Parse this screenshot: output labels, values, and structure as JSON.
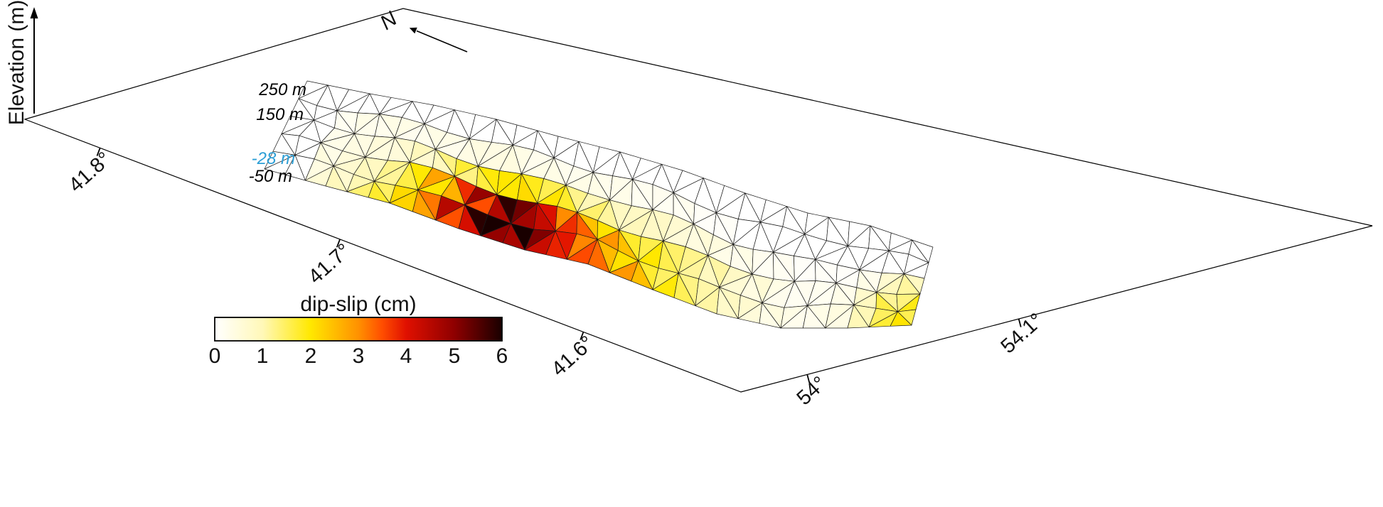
{
  "chart_data": {
    "type": "heatmap",
    "subtype": "3d-triangulated-fault-surface-mesh",
    "title": "",
    "axes": {
      "elevation_label": "Elevation (m)",
      "north_label": "N",
      "latitude_tick_labels": [
        "41.8°",
        "41.7°",
        "41.6°"
      ],
      "latitude_ticks_deg": [
        41.8,
        41.7,
        41.6
      ],
      "longitude_tick_labels": [
        "54°",
        "54.1°"
      ],
      "longitude_ticks_deg": [
        54,
        54.1
      ],
      "elevation_contour_labels": [
        "250 m",
        "150 m",
        "-28 m",
        "-50 m"
      ],
      "elevation_contours_m": [
        250,
        150,
        -28,
        -50
      ],
      "elevation_contour_label_colors": [
        "#000000",
        "#000000",
        "#2e9fd6",
        "#000000"
      ]
    },
    "colorbar": {
      "title": "dip-slip (cm)",
      "min": 0,
      "max": 6,
      "ticks": [
        "0",
        "1",
        "2",
        "3",
        "4",
        "5",
        "6"
      ],
      "stops": [
        [
          0,
          "#ffffff"
        ],
        [
          1,
          "#fff8b8"
        ],
        [
          2,
          "#ffe800"
        ],
        [
          3,
          "#ff9100"
        ],
        [
          3.5,
          "#ff4d00"
        ],
        [
          4,
          "#e01000"
        ],
        [
          5,
          "#8f0000"
        ],
        [
          6,
          "#190000"
        ]
      ]
    },
    "mesh": {
      "rows": 5,
      "cols": 30,
      "units": "cm",
      "peak_slip_cm": 6,
      "slip_cm": [
        [
          0,
          0,
          0,
          0,
          0,
          0,
          0,
          0,
          0,
          0,
          0,
          0,
          0,
          0,
          0,
          0,
          0,
          0,
          0,
          0,
          0,
          0,
          0,
          0,
          0,
          0,
          0,
          0,
          0,
          0
        ],
        [
          0,
          0,
          0.2,
          0.3,
          0.3,
          0.3,
          0.3,
          0.3,
          0.4,
          0.4,
          0.4,
          0.3,
          0.3,
          0.3,
          0.3,
          0.3,
          0.2,
          0.2,
          0.2,
          0.1,
          0.1,
          0,
          0,
          0,
          0,
          0,
          0,
          0,
          0,
          0
        ],
        [
          0,
          0,
          0.3,
          0.4,
          0.5,
          0.6,
          0.8,
          1.1,
          1.5,
          1.8,
          2.0,
          2.0,
          1.8,
          1.5,
          1.2,
          1.0,
          0.9,
          0.8,
          0.6,
          0.5,
          0.4,
          0.3,
          0.2,
          0.2,
          0.1,
          0.1,
          0.1,
          0.3,
          0.8,
          1.0
        ],
        [
          0,
          0,
          0.4,
          0.6,
          0.9,
          1.2,
          1.8,
          2.4,
          3.2,
          4.2,
          5.2,
          5.0,
          4.2,
          3.4,
          2.9,
          2.5,
          2.1,
          1.8,
          1.5,
          1.2,
          1.0,
          0.7,
          0.5,
          0.3,
          0.2,
          0.2,
          0.3,
          0.8,
          1.4,
          1.6
        ],
        [
          0,
          0,
          0.5,
          0.8,
          1.2,
          1.6,
          2.2,
          3.0,
          4.0,
          5.0,
          6.0,
          5.5,
          4.7,
          3.9,
          3.3,
          2.9,
          2.5,
          2.1,
          1.7,
          1.4,
          1.1,
          0.8,
          0.6,
          0.4,
          0.3,
          0.3,
          0.4,
          1.0,
          1.6,
          1.8
        ]
      ]
    }
  }
}
